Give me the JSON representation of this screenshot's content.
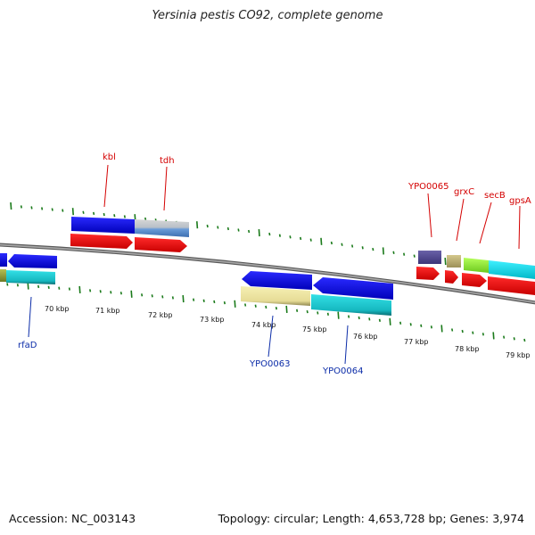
{
  "title": "Yersinia pestis CO92, complete genome",
  "footer": {
    "accession": "Accession: NC_003143",
    "summary": "Topology: circular; Length: 4,653,728 bp; Genes: 3,974"
  },
  "colors": {
    "backbone": "#8a8a8a",
    "tick": "#1a7a1a",
    "label_red": "#d40000",
    "label_blue": "#0b2ca8"
  },
  "scale_labels": [
    "70 kbp",
    "71 kbp",
    "72 kbp",
    "73 kbp",
    "74 kbp",
    "75 kbp",
    "76 kbp",
    "77 kbp",
    "78 kbp",
    "79 kbp"
  ],
  "features": {
    "forward": [
      {
        "label": "kbl",
        "color": "#d40000"
      },
      {
        "label": "tdh",
        "color": "#d40000"
      },
      {
        "label": "YPO0065",
        "color": "#d40000"
      },
      {
        "label": "grxC",
        "color": "#d40000"
      },
      {
        "label": "secB",
        "color": "#d40000"
      },
      {
        "label": "gpsA",
        "color": "#d40000"
      }
    ],
    "reverse": [
      {
        "label": "rfaD",
        "color": "#0b2ca8"
      },
      {
        "label": "YPO0063",
        "color": "#0b2ca8"
      },
      {
        "label": "YPO0064",
        "color": "#0b2ca8"
      }
    ]
  }
}
